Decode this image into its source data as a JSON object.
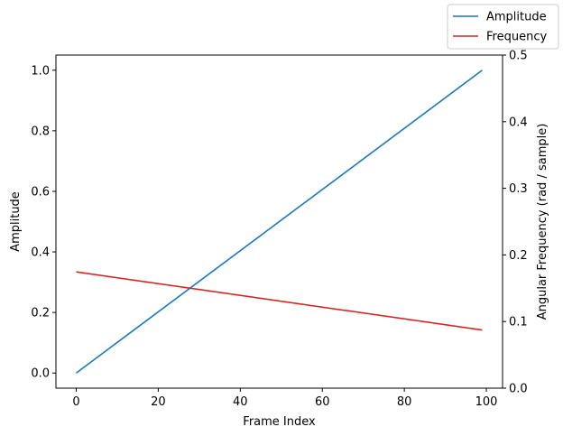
{
  "chart_data": {
    "type": "line",
    "xlabel": "Frame Index",
    "ylabel_left": "Amplitude",
    "ylabel_right": "Angular Frequency (rad / sample)",
    "xlim": [
      -4.95,
      103.95
    ],
    "ylim_left": [
      -0.05,
      1.05
    ],
    "ylim_right": [
      0.0,
      0.5
    ],
    "xticks": [
      0,
      20,
      40,
      60,
      80,
      100
    ],
    "yticks_left": [
      0.0,
      0.2,
      0.4,
      0.6,
      0.8,
      1.0
    ],
    "yticks_right": [
      0.0,
      0.1,
      0.2,
      0.3,
      0.4,
      0.5
    ],
    "grid": false,
    "legend_position": "top-right",
    "series": [
      {
        "name": "Amplitude",
        "axis": "left",
        "color": "#1f77b4",
        "x": [
          0,
          99
        ],
        "values": [
          0.0,
          1.0
        ]
      },
      {
        "name": "Frequency",
        "axis": "right",
        "color": "#d62728",
        "x": [
          0,
          99
        ],
        "values": [
          0.1745,
          0.0873
        ]
      }
    ]
  }
}
